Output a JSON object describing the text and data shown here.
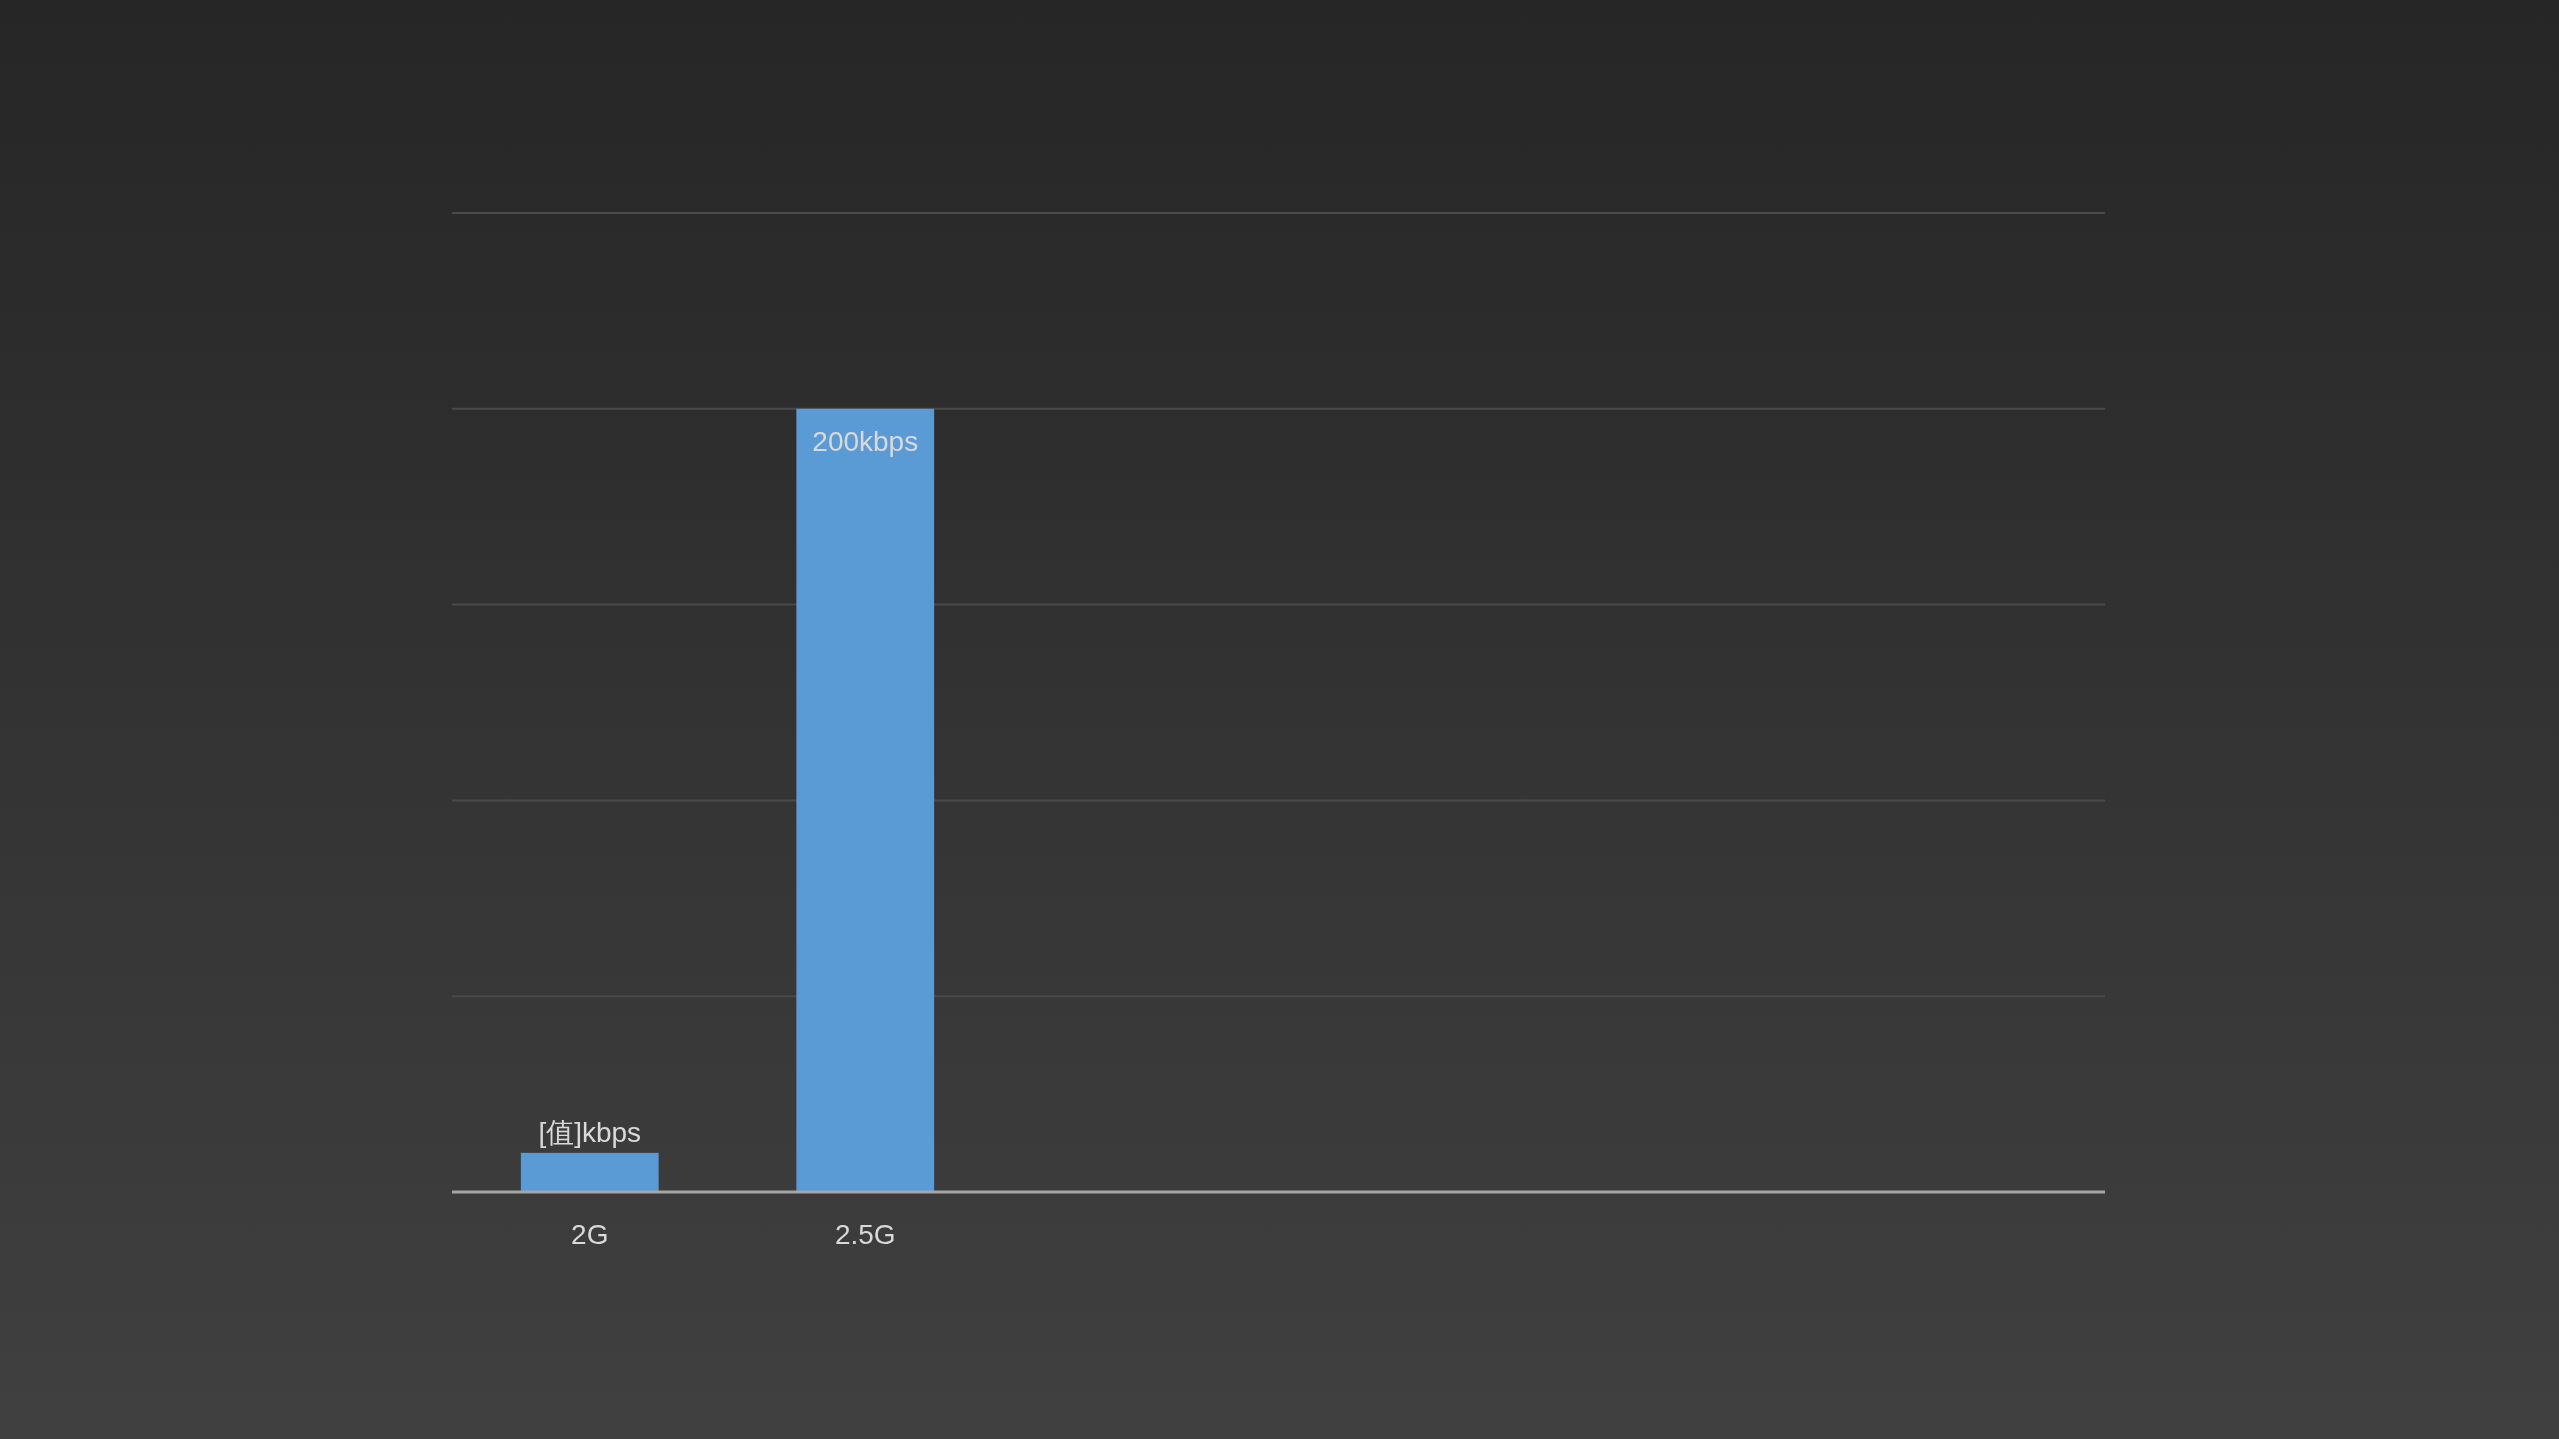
{
  "chart_data": {
    "type": "bar",
    "categories": [
      "2G",
      "2.5G",
      null,
      null,
      null,
      null
    ],
    "values": [
      10,
      200,
      null,
      null,
      null,
      null
    ],
    "color": "#5b9bd5",
    "value_labels": [
      "[值]kbps",
      "200kbps",
      null,
      null,
      null,
      null
    ],
    "ylim": [
      0,
      250
    ],
    "yticks": [
      {
        "value": 0,
        "label": null
      },
      {
        "value": 50,
        "label": null
      },
      {
        "value": 100,
        "label": null
      },
      {
        "value": 150,
        "label": null
      },
      {
        "value": 200,
        "label": null
      },
      {
        "value": 250,
        "label": null
      }
    ],
    "grid": "y",
    "tick_labels": "x"
  }
}
